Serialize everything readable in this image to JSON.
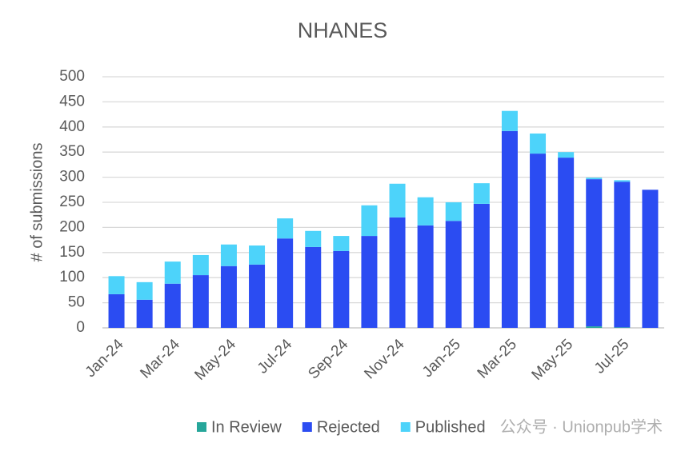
{
  "chart_data": {
    "type": "stacked-bar",
    "title": "NHANES",
    "y_label": "# of submissions",
    "categories": [
      "Jan-24",
      null,
      "Mar-24",
      null,
      "May-24",
      null,
      "Jul-24",
      null,
      "Sep-24",
      null,
      "Nov-24",
      null,
      "Jan-25",
      null,
      "Mar-25",
      null,
      "May-25",
      null,
      "Jul-25",
      null
    ],
    "series": [
      {
        "name": "In Review",
        "color": "#26a69a",
        "values": [
          0,
          0,
          0,
          0,
          0,
          0,
          0,
          0,
          0,
          0,
          0,
          0,
          0,
          0,
          0,
          0,
          0,
          3,
          1,
          0
        ]
      },
      {
        "name": "Rejected",
        "color": "#2b4cf2",
        "values": [
          67,
          56,
          88,
          105,
          123,
          126,
          178,
          161,
          153,
          183,
          220,
          204,
          213,
          247,
          392,
          347,
          339,
          293,
          290,
          275
        ]
      },
      {
        "name": "Published",
        "color": "#4dd3fa",
        "values": [
          36,
          35,
          44,
          40,
          43,
          38,
          40,
          32,
          30,
          61,
          67,
          56,
          37,
          41,
          40,
          40,
          11,
          3,
          3,
          0
        ]
      }
    ],
    "ylim": [
      0,
      500
    ],
    "yticks": [
      0,
      50,
      100,
      150,
      200,
      250,
      300,
      350,
      400,
      450,
      500
    ],
    "grid": true,
    "legend": "bottom-right",
    "watermark": "公众号 · Unionpub学术"
  }
}
